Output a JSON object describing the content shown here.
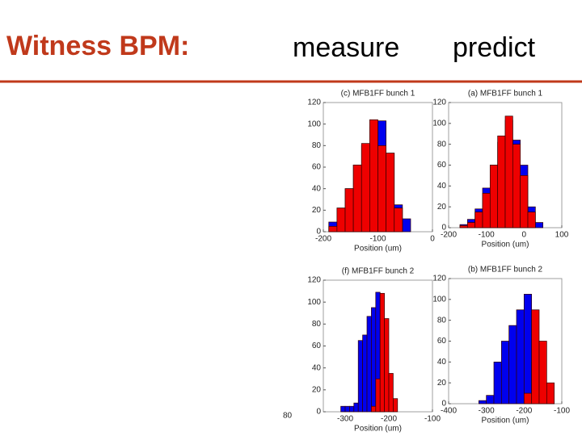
{
  "header": {
    "title": "Witness BPM:",
    "col1": "measure",
    "col2": "predict"
  },
  "page_number": "80",
  "chart_data": [
    {
      "type": "histogram",
      "title": "(c) MFB1FF bunch 1",
      "xlabel": "Position (um)",
      "bins": [
        -190,
        -175,
        -160,
        -145,
        -130,
        -115,
        -100,
        -85,
        -70,
        -55,
        -40
      ],
      "series": [
        {
          "name": "blue",
          "color": "#0000ee",
          "values": [
            9,
            22,
            40,
            62,
            80,
            97,
            103,
            73,
            25,
            12
          ]
        },
        {
          "name": "red",
          "color": "#ee0000",
          "values": [
            5,
            22,
            40,
            62,
            82,
            104,
            80,
            73,
            22,
            0
          ]
        }
      ],
      "xlim": [
        -200,
        0
      ],
      "ylim": [
        0,
        120
      ],
      "xticks": [
        -200,
        -100,
        0
      ],
      "yticks": [
        0,
        20,
        40,
        60,
        80,
        100,
        120
      ]
    },
    {
      "type": "histogram",
      "title": "(a) MFB1FF bunch 1",
      "xlabel": "Position (um)",
      "bins": [
        -170,
        -150,
        -130,
        -110,
        -90,
        -70,
        -50,
        -30,
        -10,
        10,
        30,
        50
      ],
      "series": [
        {
          "name": "blue",
          "color": "#0000ee",
          "values": [
            3,
            8,
            18,
            38,
            60,
            82,
            103,
            84,
            60,
            20,
            5
          ]
        },
        {
          "name": "red",
          "color": "#ee0000",
          "values": [
            2,
            5,
            15,
            33,
            60,
            88,
            107,
            80,
            50,
            15,
            0
          ]
        }
      ],
      "xlim": [
        -200,
        100
      ],
      "ylim": [
        0,
        120
      ],
      "xticks": [
        -200,
        -100,
        0,
        100
      ],
      "yticks": [
        0,
        20,
        40,
        60,
        80,
        100,
        120
      ]
    },
    {
      "type": "histogram",
      "title": "(f) MFB1FF bunch 2",
      "xlabel": "Position (um)",
      "bins": [
        -310,
        -300,
        -290,
        -280,
        -270,
        -260,
        -250,
        -240,
        -230,
        -220,
        -210,
        -200,
        -190,
        -180
      ],
      "series": [
        {
          "name": "blue",
          "color": "#0000ee",
          "values": [
            5,
            5,
            5,
            8,
            65,
            70,
            87,
            95,
            109,
            30,
            0,
            0,
            0
          ]
        },
        {
          "name": "red",
          "color": "#ee0000",
          "values": [
            0,
            0,
            0,
            0,
            0,
            0,
            0,
            5,
            30,
            108,
            85,
            35,
            12
          ]
        }
      ],
      "xlim": [
        -350,
        -100
      ],
      "ylim": [
        0,
        120
      ],
      "xticks": [
        -300,
        -200,
        -100
      ],
      "yticks": [
        0,
        20,
        40,
        60,
        80,
        100,
        120
      ]
    },
    {
      "type": "histogram",
      "title": "(b) MFB1FF bunch 2",
      "xlabel": "Position (um)",
      "bins": [
        -320,
        -300,
        -280,
        -260,
        -240,
        -220,
        -200,
        -180,
        -160,
        -140,
        -120
      ],
      "series": [
        {
          "name": "blue",
          "color": "#0000ee",
          "values": [
            3,
            8,
            40,
            60,
            75,
            90,
            105,
            40,
            10,
            3
          ]
        },
        {
          "name": "red",
          "color": "#ee0000",
          "values": [
            0,
            0,
            0,
            0,
            0,
            0,
            10,
            90,
            60,
            20
          ]
        }
      ],
      "xlim": [
        -400,
        -100
      ],
      "ylim": [
        0,
        120
      ],
      "xticks": [
        -400,
        -300,
        -200,
        -100
      ],
      "yticks": [
        0,
        20,
        40,
        60,
        80,
        100,
        120
      ]
    }
  ]
}
